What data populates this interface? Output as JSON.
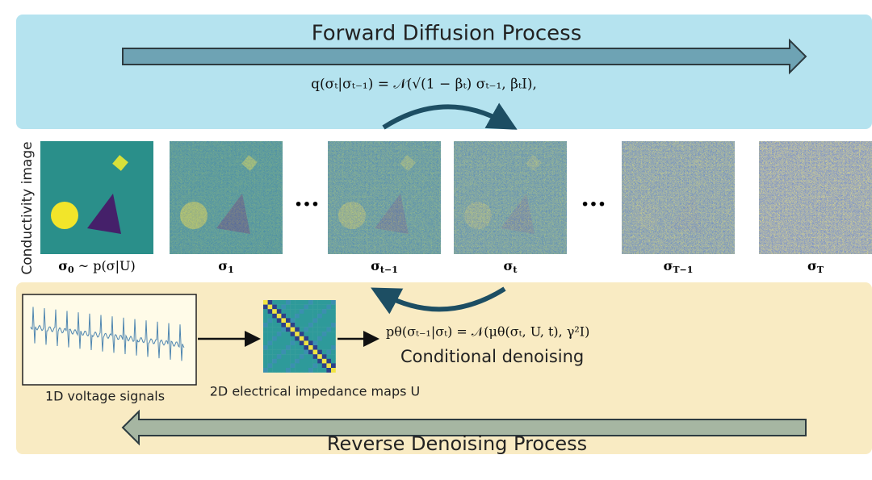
{
  "forward": {
    "title": "Forward Diffusion Process",
    "formula": "q(σₜ|σₜ₋₁) = 𝒩(√(1 − βₜ) σₜ₋₁, βₜI),"
  },
  "side_label": "Conductivity image",
  "panels": [
    {
      "symbol": "σ",
      "subscript": "0",
      "rest": " ~ p(σ|U)"
    },
    {
      "symbol": "σ",
      "subscript": "1"
    },
    {
      "symbol": "σ",
      "subscript": "t−1"
    },
    {
      "symbol": "σ",
      "subscript": "t"
    },
    {
      "symbol": "σ",
      "subscript": "T−1"
    },
    {
      "symbol": "σ",
      "subscript": "T"
    }
  ],
  "ellipses": [
    "···",
    "···"
  ],
  "reverse": {
    "formula": "pθ(σₜ₋₁|σₜ) = 𝒩(μθ(σₜ, U, t), γ²I)",
    "caption": "Conditional denoising",
    "signals_label": "1D voltage signals",
    "maps_label": "2D electrical impedance maps U",
    "title": "Reverse Denoising Process"
  }
}
